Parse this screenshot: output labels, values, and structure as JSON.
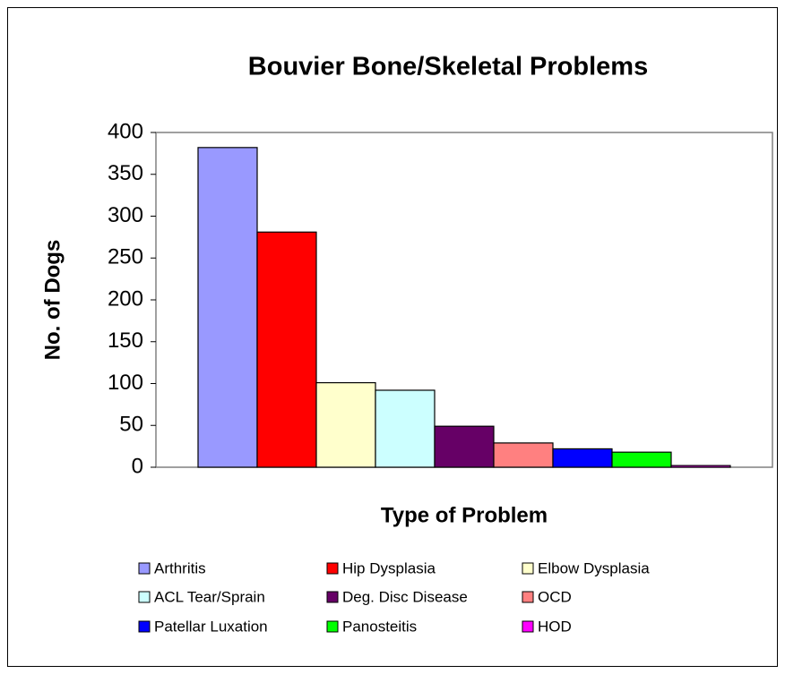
{
  "chart_data": {
    "type": "bar",
    "title": "Bouvier Bone/Skeletal Problems",
    "x_label": "Type of Problem",
    "y_label": "No. of Dogs",
    "categories": [
      "Arthritis",
      "Hip Dysplasia",
      "Elbow Dysplasia",
      "ACL Tear/Sprain",
      "Deg. Disc Disease",
      "OCD",
      "Patellar Luxation",
      "Panosteitis",
      "HOD"
    ],
    "values": [
      382,
      281,
      101,
      92,
      49,
      29,
      22,
      18,
      2
    ],
    "colors": [
      "#9999ff",
      "#ff0000",
      "#ffffcc",
      "#ccffff",
      "#660066",
      "#ff8080",
      "#0000ff",
      "#00ff00",
      "#ff00ff"
    ],
    "ylim": [
      0,
      400
    ],
    "yticks": [
      0,
      50,
      100,
      150,
      200,
      250,
      300,
      350,
      400
    ],
    "grid": false,
    "legend": "bottom"
  }
}
